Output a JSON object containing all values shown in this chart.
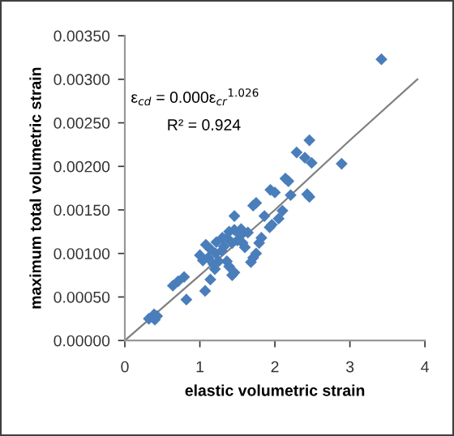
{
  "chart_data": {
    "type": "scatter",
    "xlabel": "elastic volumetric strain",
    "ylabel": "maximum total volumetric strain",
    "xlim": [
      0,
      4
    ],
    "xticks": [
      0,
      1,
      2,
      3,
      4
    ],
    "ylim": [
      0,
      0.0035
    ],
    "yticks": [
      {
        "value": 0,
        "label": "0.00000"
      },
      {
        "value": 0.0005,
        "label": "0.00050"
      },
      {
        "value": 0.001,
        "label": "0.00100"
      },
      {
        "value": 0.0015,
        "label": "0.00150"
      },
      {
        "value": 0.002,
        "label": "0.00200"
      },
      {
        "value": 0.0025,
        "label": "0.00250"
      },
      {
        "value": 0.003,
        "label": "0.00300"
      },
      {
        "value": 0.0035,
        "label": "0.00350"
      }
    ],
    "annotations": [
      "ε$_{cd}$ = 0.000ε$_{cr}$$^{1.026}$",
      "R² = 0.924"
    ],
    "grid": false,
    "legend": false,
    "series": [
      {
        "color": "#4a7ebb",
        "marker": "diamond",
        "x": [
          0.32,
          0.39,
          0.43,
          0.4,
          0.64,
          0.71,
          0.79,
          0.82,
          1.07,
          1.14,
          1.04,
          1.11,
          1.14,
          1.21,
          1.18,
          1.25,
          1.29,
          1.0,
          1.08,
          1.36,
          1.39,
          1.43,
          1.46,
          1.5,
          1.54,
          1.32,
          1.43,
          1.46,
          1.36,
          1.39,
          1.46,
          1.57,
          1.64,
          1.68,
          1.71,
          1.75,
          1.79,
          1.82,
          1.71,
          1.75,
          1.86,
          1.93,
          1.96,
          1.94,
          2.0,
          2.1,
          2.14,
          2.18,
          2.21,
          2.43,
          2.46,
          2.46,
          2.89,
          2.29,
          2.4,
          2.49,
          3.42,
          1.22,
          1.3,
          1.2,
          1.55,
          1.6,
          2.05
        ],
        "values": [
          0.00025,
          0.0003,
          0.00028,
          0.00024,
          0.00063,
          0.00068,
          0.00073,
          0.00047,
          0.00057,
          0.0007,
          0.00092,
          0.00095,
          0.00105,
          0.001,
          0.00088,
          0.00091,
          0.00103,
          0.00098,
          0.0011,
          0.00118,
          0.00125,
          0.00112,
          0.00127,
          0.00115,
          0.00121,
          0.00108,
          0.00075,
          0.00078,
          0.00091,
          0.00085,
          0.00143,
          0.00112,
          0.00124,
          0.0009,
          0.00095,
          0.001,
          0.00112,
          0.00118,
          0.00155,
          0.00158,
          0.00143,
          0.0013,
          0.00133,
          0.00173,
          0.0017,
          0.00149,
          0.00186,
          0.00183,
          0.00167,
          0.00168,
          0.00165,
          0.0023,
          0.00203,
          0.00216,
          0.0021,
          0.00204,
          0.00323,
          0.00113,
          0.00118,
          0.00082,
          0.00128,
          0.00107,
          0.0014
        ]
      },
      {
        "type": "line",
        "color": "#808080",
        "marker": "none",
        "line_style": "solid",
        "x": [
          0,
          1,
          2,
          3,
          3.9
        ],
        "values": [
          0,
          0.00075,
          0.0015,
          0.0023,
          0.003
        ]
      }
    ]
  }
}
